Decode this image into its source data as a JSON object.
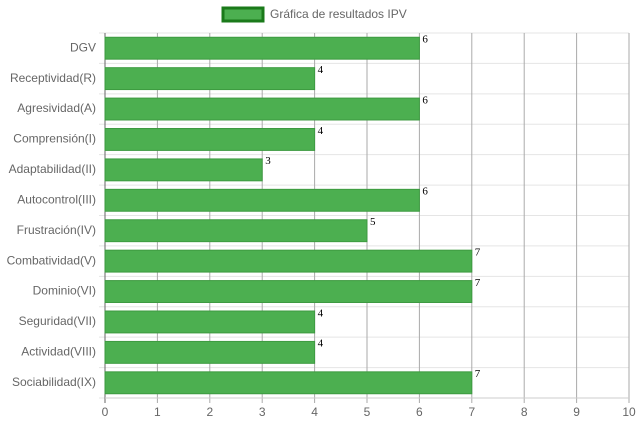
{
  "chart_data": {
    "type": "bar",
    "orientation": "horizontal",
    "categories": [
      "DGV",
      "Receptividad(R)",
      "Agresividad(A)",
      "Comprensión(I)",
      "Adaptabilidad(II)",
      "Autocontrol(III)",
      "Frustración(IV)",
      "Combatividad(V)",
      "Dominio(VI)",
      "Seguridad(VII)",
      "Actividad(VIII)",
      "Sociabilidad(IX)"
    ],
    "series": [
      {
        "name": "Gráfica de resultados IPV",
        "color": "#4caf50",
        "values": [
          6,
          4,
          6,
          4,
          3,
          6,
          5,
          7,
          7,
          4,
          4,
          7
        ]
      }
    ],
    "xlim": [
      0,
      10
    ],
    "xticks": [
      0,
      1,
      2,
      3,
      4,
      5,
      6,
      7,
      8,
      9,
      10
    ],
    "grid": true,
    "legend": "top"
  }
}
